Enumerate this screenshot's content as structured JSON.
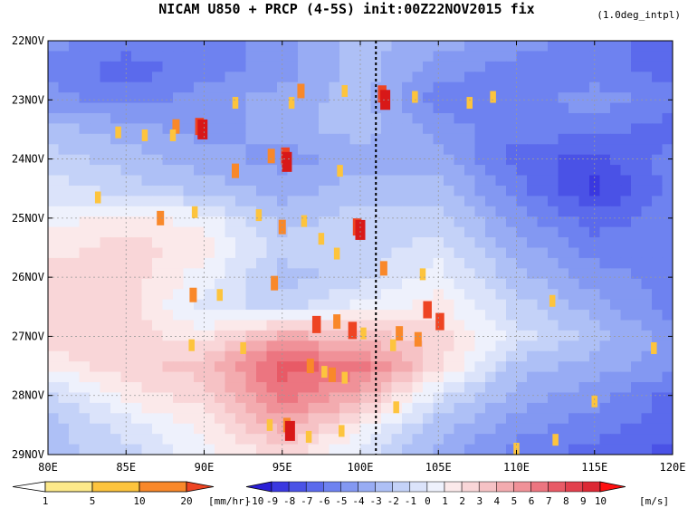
{
  "chart_data": {
    "type": "heatmap",
    "title": "NICAM  U850 + PRCP (4-5S) init:00Z22NOV2015 fix",
    "subtitle": "(1.0deg_intpl)",
    "x_tick_labels": [
      "80E",
      "85E",
      "90E",
      "95E",
      "100E",
      "105E",
      "110E",
      "115E",
      "120E"
    ],
    "x_ticks_deg": [
      80,
      85,
      90,
      95,
      100,
      105,
      110,
      115,
      120
    ],
    "xlim": [
      80,
      120
    ],
    "y_tick_labels": [
      "22NOV",
      "23NOV",
      "24NOV",
      "25NOV",
      "26NOV",
      "27NOV",
      "28NOV",
      "29NOV"
    ],
    "y_ticks_day": [
      22,
      23,
      24,
      25,
      26,
      27,
      28,
      29
    ],
    "ylim": [
      22,
      29
    ],
    "grid": true,
    "marker_line_lon": 101,
    "u850_colorbar": {
      "labels": [
        "-10",
        "-9",
        "-8",
        "-7",
        "-6",
        "-5",
        "-4",
        "-3",
        "-2",
        "-1",
        "0",
        "1",
        "2",
        "3",
        "4",
        "5",
        "6",
        "7",
        "8",
        "9",
        "10"
      ],
      "unit": "[m/s]",
      "colors": [
        "#2b1fd6",
        "#3a38e0",
        "#4a52e6",
        "#5b6aec",
        "#6e82f0",
        "#8398f2",
        "#98acf4",
        "#aec0f6",
        "#c4d2f8",
        "#dbe3fa",
        "#eef1fc",
        "#fbe9ea",
        "#f9d6d8",
        "#f6c2c5",
        "#f3abaf",
        "#f09198",
        "#ec7580",
        "#e85a66",
        "#e2404d",
        "#dc2834",
        "#ff1010"
      ]
    },
    "prcp_colorbar": {
      "labels": [
        "1",
        "5",
        "10",
        "20"
      ],
      "unit": "[mm/hr]",
      "colors": [
        "#fde98a",
        "#fdc43d",
        "#f9882a",
        "#ee4422",
        "#d81818"
      ]
    },
    "u850_field": {
      "lon": [
        80,
        85,
        90,
        95,
        100,
        105,
        110,
        115,
        120
      ],
      "days": [
        22,
        22.5,
        23,
        23.5,
        24,
        24.5,
        25,
        25.5,
        26,
        26.5,
        27,
        27.5,
        28,
        28.5,
        29
      ],
      "values": [
        [
          -5,
          -6,
          -6,
          -5,
          -3,
          -4,
          -5,
          -6,
          -7
        ],
        [
          -6,
          -7,
          -6,
          -5,
          -3,
          -5,
          -6,
          -6,
          -7
        ],
        [
          -5,
          -6,
          -5,
          -4,
          -3,
          -6,
          -6,
          -5,
          -6
        ],
        [
          -3,
          -4,
          -5,
          -4,
          -3,
          -5,
          -6,
          -6,
          -7
        ],
        [
          -2,
          -3,
          -4,
          -5,
          -4,
          -4,
          -7,
          -8,
          -6
        ],
        [
          -1,
          -2,
          -3,
          -4,
          -3,
          -3,
          -6,
          -9,
          -6
        ],
        [
          0,
          1,
          0,
          -3,
          -2,
          -2,
          -5,
          -7,
          -6
        ],
        [
          1,
          2,
          1,
          -2,
          -2,
          -1,
          -4,
          -6,
          -6
        ],
        [
          2,
          2,
          0,
          -3,
          -2,
          0,
          -3,
          -5,
          -6
        ],
        [
          2,
          2,
          -1,
          -2,
          0,
          1,
          -2,
          -4,
          -6
        ],
        [
          2,
          2,
          1,
          4,
          3,
          2,
          -1,
          -3,
          -5
        ],
        [
          1,
          2,
          3,
          7,
          6,
          2,
          -3,
          -4,
          -5
        ],
        [
          -2,
          1,
          2,
          6,
          4,
          -1,
          -4,
          -5,
          -7
        ],
        [
          -3,
          -1,
          1,
          4,
          1,
          -3,
          -5,
          -6,
          -7
        ],
        [
          -3,
          -2,
          0,
          2,
          -1,
          -4,
          -6,
          -7,
          -8
        ]
      ]
    },
    "prcp_cells": [
      [
        92,
        23.05,
        1
      ],
      [
        95.6,
        23.05,
        1
      ],
      [
        96.2,
        22.85,
        2
      ],
      [
        99,
        22.85,
        1
      ],
      [
        101.4,
        22.9,
        3
      ],
      [
        101.6,
        23.0,
        4
      ],
      [
        103.5,
        22.95,
        1
      ],
      [
        107,
        23.05,
        1
      ],
      [
        108.5,
        22.95,
        1
      ],
      [
        84.5,
        23.55,
        1
      ],
      [
        88.2,
        23.45,
        2
      ],
      [
        89.7,
        23.45,
        3
      ],
      [
        89.9,
        23.5,
        4
      ],
      [
        88,
        23.6,
        1
      ],
      [
        86.2,
        23.6,
        1
      ],
      [
        94.3,
        23.95,
        2
      ],
      [
        95.2,
        23.95,
        3
      ],
      [
        95.3,
        24.05,
        4
      ],
      [
        92,
        24.2,
        2
      ],
      [
        98.7,
        24.2,
        1
      ],
      [
        83.2,
        24.65,
        1
      ],
      [
        87.2,
        25.0,
        2
      ],
      [
        89.4,
        24.9,
        1
      ],
      [
        93.5,
        24.95,
        1
      ],
      [
        95,
        25.15,
        2
      ],
      [
        96.4,
        25.05,
        1
      ],
      [
        99.8,
        25.15,
        3
      ],
      [
        100,
        25.2,
        4
      ],
      [
        97.5,
        25.35,
        1
      ],
      [
        98.5,
        25.6,
        1
      ],
      [
        101.5,
        25.85,
        2
      ],
      [
        104,
        25.95,
        1
      ],
      [
        94.5,
        26.1,
        2
      ],
      [
        91,
        26.3,
        1
      ],
      [
        89.3,
        26.3,
        2
      ],
      [
        97.2,
        26.8,
        3
      ],
      [
        98.5,
        26.75,
        2
      ],
      [
        99.5,
        26.9,
        3
      ],
      [
        104.3,
        26.55,
        3
      ],
      [
        105.1,
        26.75,
        3
      ],
      [
        100.2,
        26.95,
        1
      ],
      [
        102.5,
        26.95,
        2
      ],
      [
        103.7,
        27.05,
        2
      ],
      [
        102.1,
        27.15,
        1
      ],
      [
        96.8,
        27.5,
        2
      ],
      [
        97.7,
        27.6,
        1
      ],
      [
        98.2,
        27.65,
        2
      ],
      [
        99,
        27.7,
        1
      ],
      [
        92.5,
        27.2,
        1
      ],
      [
        89.2,
        27.15,
        1
      ],
      [
        95.3,
        28.5,
        2
      ],
      [
        95.5,
        28.6,
        4
      ],
      [
        94.2,
        28.5,
        1
      ],
      [
        96.7,
        28.7,
        1
      ],
      [
        98.8,
        28.6,
        1
      ],
      [
        102.3,
        28.2,
        1
      ],
      [
        112.5,
        28.75,
        1
      ],
      [
        115,
        28.1,
        1
      ],
      [
        112.3,
        26.4,
        1
      ],
      [
        118.8,
        27.2,
        1
      ],
      [
        110,
        28.9,
        1
      ]
    ]
  }
}
